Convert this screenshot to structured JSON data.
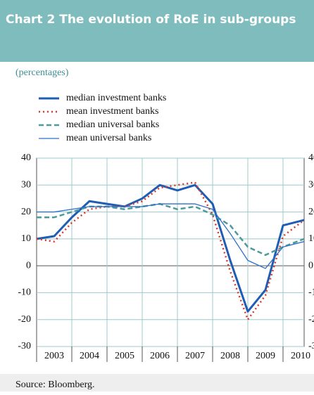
{
  "chart_data": {
    "type": "line",
    "title": "Chart 2 The evolution of RoE in sub-groups",
    "subtitle": "(percentages)",
    "source": "Source: Bloomberg.",
    "x": [
      2002.5,
      2003,
      2003.5,
      2004,
      2004.5,
      2005,
      2005.5,
      2006,
      2006.5,
      2007,
      2007.5,
      2008,
      2008.5,
      2009,
      2009.5,
      2010.1
    ],
    "xlim": [
      2002.5,
      2010.1
    ],
    "xticks": [
      2003,
      2004,
      2005,
      2006,
      2007,
      2008,
      2009,
      2010
    ],
    "ylim": [
      -30,
      40
    ],
    "yticks": [
      -30,
      -20,
      -10,
      0,
      10,
      20,
      30,
      40
    ],
    "grid": true,
    "series": [
      {
        "name": "median investment banks",
        "color": "#1f5db4",
        "line_style": "solid",
        "width": 3,
        "values": [
          10,
          11,
          18,
          24,
          23,
          22,
          25,
          30,
          28,
          30,
          23,
          2,
          -17,
          -9,
          15,
          17
        ]
      },
      {
        "name": "mean investment banks",
        "color": "#d8392b",
        "line_style": "dotted",
        "width": 2.5,
        "values": [
          10,
          9,
          16,
          21,
          22,
          22,
          24,
          29,
          30,
          31,
          19,
          -2,
          -20,
          -11,
          11,
          17
        ]
      },
      {
        "name": "median universal banks",
        "color": "#4d9a9c",
        "line_style": "dashed",
        "width": 2.5,
        "values": [
          18,
          18,
          20,
          22,
          22,
          21,
          22,
          23,
          21,
          22,
          19,
          15,
          7,
          4,
          7,
          10
        ]
      },
      {
        "name": "mean universal banks",
        "color": "#2f6fc6",
        "line_style": "solid",
        "width": 1.3,
        "values": [
          20,
          20,
          21,
          22,
          22,
          22,
          22,
          23,
          23,
          23,
          21,
          12,
          2,
          -1,
          7,
          9
        ]
      }
    ]
  }
}
